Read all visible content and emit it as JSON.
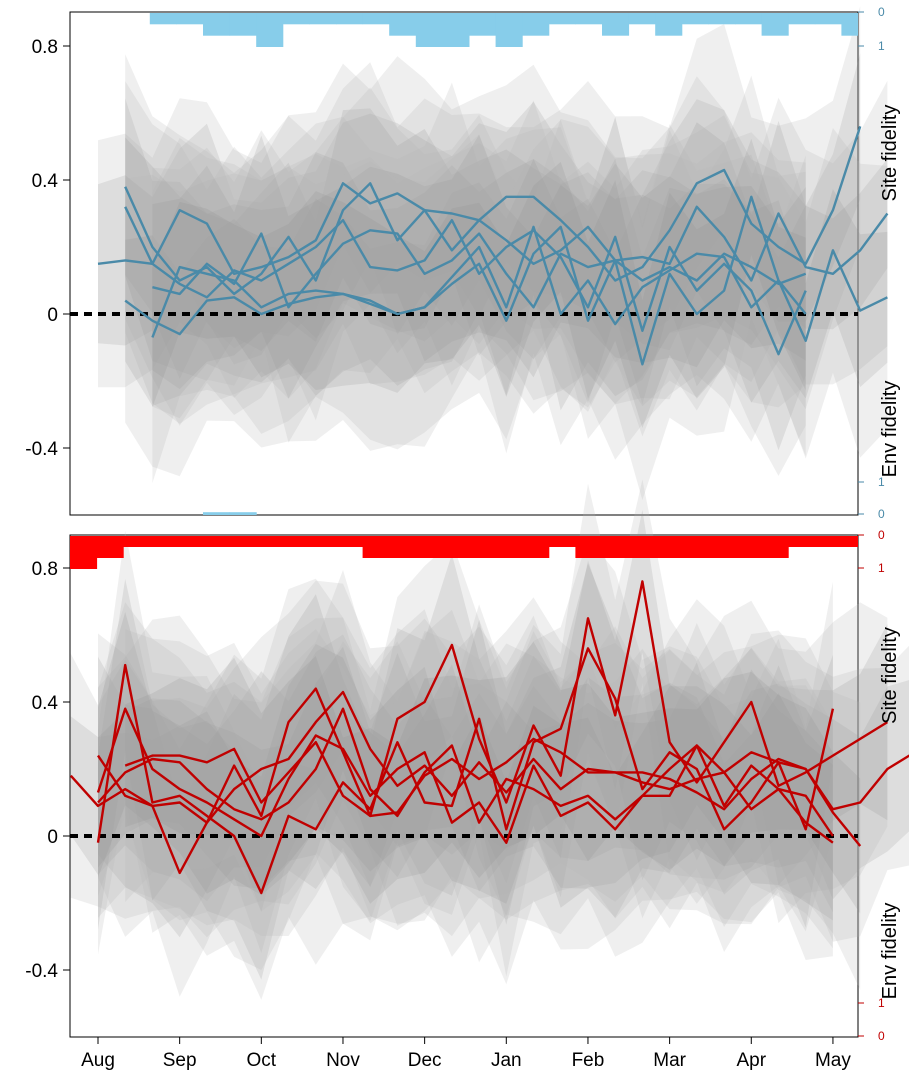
{
  "chart_data": [
    {
      "type": "line",
      "panel": "top",
      "line_color": "#4a8aa8",
      "bar_color": "#87cdea",
      "x_ticks": [
        "Aug",
        "Sep",
        "Oct",
        "Nov",
        "Dec",
        "Jan",
        "Feb",
        "Mar",
        "Apr",
        "May"
      ],
      "y_ticks": [
        "0.8",
        "0.4",
        "0",
        "-0.4"
      ],
      "y_tick_values": [
        0.8,
        0.4,
        0,
        -0.4
      ],
      "ylim": [
        -0.6,
        0.9
      ],
      "xlim": [
        0,
        31.5
      ],
      "right_axis_label_top": "Site fidelity",
      "right_axis_label_bottom": "Env fidelity",
      "right_ticks_top": [
        "0",
        "1"
      ],
      "right_ticks_bottom": [
        "1",
        "0"
      ],
      "site_fidelity_counts": [
        0,
        0,
        0,
        1,
        1,
        2,
        2,
        3,
        1,
        1,
        1,
        1,
        2,
        3,
        3,
        2,
        3,
        2,
        1,
        1,
        2,
        1,
        2,
        1,
        1,
        1,
        2,
        1,
        1,
        2,
        3,
        3,
        2
      ],
      "env_fidelity_counts": [
        0,
        0,
        0,
        0,
        0,
        1,
        1,
        0,
        0,
        0,
        0,
        0,
        0,
        0,
        0,
        0,
        0,
        0,
        0,
        0,
        0,
        0,
        0,
        0,
        0,
        0,
        0,
        0,
        0,
        0,
        0,
        0,
        0
      ],
      "series": [
        {
          "x": [
            1,
            2,
            3,
            4,
            5,
            6,
            7,
            8,
            9,
            10,
            11,
            12,
            13,
            14,
            15,
            16,
            17,
            18,
            19,
            20,
            21,
            22,
            23,
            24,
            25,
            26,
            27,
            28,
            29,
            30,
            31
          ],
          "values": [
            0.15,
            0.16,
            0.15,
            0.31,
            0.27,
            0.12,
            0.14,
            0.17,
            0.22,
            0.39,
            0.33,
            0.36,
            0.31,
            0.3,
            0.28,
            0.35,
            0.35,
            0.28,
            0.2,
            0.1,
            0.14,
            0.25,
            0.39,
            0.43,
            0.27,
            0.2,
            0.15,
            0.31,
            0.56,
            null,
            null
          ]
        },
        {
          "x": [
            2,
            3,
            4,
            5,
            6,
            7,
            8,
            9,
            10,
            11,
            12,
            13,
            14,
            15,
            16,
            17,
            18,
            19,
            20,
            21,
            22,
            23,
            24,
            25,
            26,
            27,
            28,
            29,
            30,
            31
          ],
          "values": [
            0.38,
            0.2,
            0.1,
            0.14,
            0.06,
            0.12,
            0.23,
            0.1,
            0.31,
            0.39,
            0.22,
            0.31,
            0.19,
            0.28,
            0.22,
            0.15,
            0.19,
            0.26,
            0.16,
            0.17,
            0.15,
            0.32,
            0.23,
            0.1,
            0.3,
            0.14,
            0.12,
            0.19,
            0.3,
            null
          ]
        },
        {
          "x": [
            2,
            3,
            4,
            5,
            6,
            7,
            8,
            9,
            10,
            11,
            12,
            13,
            14,
            15,
            16,
            17,
            18,
            19,
            20,
            21,
            22,
            23,
            24,
            25,
            26,
            27
          ],
          "values": [
            0.32,
            0.15,
            0.09,
            0.05,
            0.13,
            0.1,
            0.15,
            0.2,
            0.28,
            0.14,
            0.13,
            0.16,
            0.28,
            0.12,
            0.2,
            0.25,
            0.17,
            0.02,
            0.23,
            -0.05,
            0.2,
            0.07,
            0.15,
            0.07,
            -0.12,
            0.07
          ]
        },
        {
          "x": [
            2,
            3,
            4,
            5,
            6,
            7,
            8,
            9,
            10,
            11,
            12,
            13,
            14,
            15,
            16,
            17,
            18,
            19,
            20,
            21,
            22,
            23,
            24,
            25,
            26,
            27,
            28,
            29,
            30
          ],
          "values": [
            0.04,
            -0.02,
            -0.06,
            0.04,
            0.05,
            0.0,
            0.03,
            0.05,
            0.06,
            0.03,
            0.0,
            0.02,
            0.11,
            0.2,
            0.02,
            0.26,
            0.0,
            0.1,
            -0.03,
            0.08,
            0.13,
            0.18,
            0.17,
            0.02,
            0.1,
            -0.08,
            0.19,
            0.01,
            0.05
          ]
        },
        {
          "x": [
            3,
            4,
            5,
            6,
            7,
            8,
            9,
            10,
            11,
            12,
            13,
            14,
            15,
            16,
            17,
            18,
            19,
            20,
            21,
            22,
            23,
            24,
            25,
            26,
            27
          ],
          "values": [
            0.08,
            0.06,
            0.15,
            0.09,
            0.24,
            0.02,
            0.12,
            0.21,
            0.25,
            0.24,
            0.12,
            0.16,
            0.24,
            0.12,
            0.02,
            0.18,
            0.14,
            0.16,
            0.1,
            0.14,
            0.1,
            0.18,
            0.14,
            0.09,
            0.12
          ]
        },
        {
          "x": [
            3,
            4,
            5,
            6,
            7,
            8,
            9,
            10,
            11,
            12,
            13,
            14,
            15,
            16,
            17,
            18,
            19,
            20,
            21,
            22,
            23,
            24,
            25,
            26,
            27
          ],
          "values": [
            -0.07,
            0.14,
            0.12,
            0.1,
            0.02,
            0.06,
            0.07,
            0.06,
            0.04,
            0.0,
            0.02,
            0.09,
            0.15,
            -0.02,
            0.18,
            0.26,
            -0.02,
            0.16,
            -0.15,
            0.12,
            0.0,
            0.07,
            0.35,
            0.1,
            0.0
          ]
        }
      ]
    },
    {
      "type": "line",
      "panel": "bottom",
      "line_color": "#c00000",
      "bar_color": "#ff0000",
      "x_ticks": [
        "Aug",
        "Sep",
        "Oct",
        "Nov",
        "Dec",
        "Jan",
        "Feb",
        "Mar",
        "Apr",
        "May"
      ],
      "y_ticks": [
        "0.8",
        "0.4",
        "0",
        "-0.4"
      ],
      "y_tick_values": [
        0.8,
        0.4,
        0,
        -0.4
      ],
      "ylim": [
        -0.6,
        0.9
      ],
      "xlim": [
        0,
        31.5
      ],
      "right_axis_label_top": "Site fidelity",
      "right_axis_label_bottom": "Env fidelity",
      "right_ticks_top": [
        "0",
        "1"
      ],
      "right_ticks_bottom": [
        "1",
        "0"
      ],
      "site_fidelity_counts": [
        3,
        2,
        1,
        1,
        1,
        1,
        1,
        1,
        1,
        1,
        1,
        2,
        2,
        2,
        2,
        2,
        2,
        2,
        1,
        2,
        2,
        2,
        2,
        2,
        2,
        2,
        2,
        1,
        1,
        1,
        1,
        1,
        3
      ],
      "env_fidelity_counts": [
        0,
        0,
        0,
        0,
        0,
        0,
        0,
        0,
        0,
        0,
        0,
        0,
        0,
        0,
        0,
        0,
        0,
        0,
        0,
        0,
        0,
        0,
        0,
        0,
        0,
        0,
        0,
        0,
        0,
        0,
        0,
        0,
        0
      ],
      "series": [
        {
          "x": [
            0,
            1,
            2,
            3,
            4,
            5,
            6,
            7,
            8,
            9,
            10,
            11,
            12,
            13,
            14,
            15,
            16,
            17,
            18,
            19,
            20,
            21,
            22,
            23,
            24,
            25,
            26,
            27,
            28,
            29,
            30,
            31
          ],
          "values": [
            0.18,
            0.09,
            0.14,
            0.09,
            0.1,
            0.04,
            0.14,
            0.2,
            0.23,
            0.34,
            0.43,
            0.26,
            0.15,
            0.21,
            0.12,
            0.22,
            0.13,
            0.23,
            0.14,
            0.2,
            0.19,
            0.19,
            0.17,
            0.13,
            0.08,
            0.17,
            0.23,
            0.2,
            0.08,
            0.1,
            0.2,
            0.25
          ]
        },
        {
          "x": [
            1,
            2,
            3,
            4,
            5,
            6,
            7,
            8,
            9,
            10,
            11,
            12,
            13,
            14,
            15,
            16,
            17,
            18,
            19,
            20,
            21,
            22,
            23,
            24,
            25,
            26,
            27,
            28,
            29,
            30
          ],
          "values": [
            0.24,
            0.12,
            0.09,
            -0.11,
            0.04,
            0.21,
            0.06,
            0.34,
            0.44,
            0.25,
            0.06,
            0.35,
            0.4,
            0.57,
            0.29,
            0.1,
            0.33,
            0.18,
            0.65,
            0.36,
            0.76,
            0.28,
            0.16,
            0.28,
            0.4,
            0.15,
            0.19,
            0.24,
            0.29,
            0.34
          ]
        },
        {
          "x": [
            1,
            2,
            3,
            4,
            5,
            6,
            7,
            8,
            9,
            10,
            11,
            12,
            13,
            14,
            15,
            16,
            17,
            18,
            19,
            20,
            21,
            22,
            23,
            24,
            25,
            26,
            27,
            28
          ],
          "values": [
            -0.02,
            0.51,
            0.1,
            0.12,
            0.06,
            0.0,
            -0.17,
            0.06,
            0.02,
            0.16,
            0.08,
            0.28,
            0.1,
            0.09,
            0.35,
            0.02,
            0.28,
            0.32,
            0.56,
            0.41,
            0.14,
            0.25,
            0.2,
            0.02,
            0.1,
            0.22,
            0.02,
            0.38
          ]
        },
        {
          "x": [
            1,
            2,
            3,
            4,
            5,
            6,
            7,
            8,
            9,
            10,
            11,
            12,
            13,
            14,
            15,
            16,
            17,
            18,
            19,
            20,
            21,
            22,
            23,
            24,
            25,
            26,
            27,
            28
          ],
          "values": [
            0.1,
            0.19,
            0.23,
            0.22,
            0.14,
            0.08,
            0.05,
            0.1,
            0.2,
            0.38,
            0.14,
            0.06,
            0.19,
            0.27,
            0.04,
            0.17,
            0.14,
            0.09,
            0.12,
            0.05,
            0.12,
            0.12,
            0.27,
            0.09,
            0.21,
            0.14,
            0.12,
            0.0
          ]
        },
        {
          "x": [
            1,
            2,
            3,
            4,
            5,
            6,
            7,
            8,
            9,
            10,
            11,
            12,
            13,
            14,
            15,
            16,
            17,
            18,
            19,
            20,
            21,
            22,
            23,
            24,
            25,
            26,
            27,
            28
          ],
          "values": [
            0.13,
            0.38,
            0.2,
            0.14,
            0.1,
            0.05,
            0.0,
            0.17,
            0.3,
            0.26,
            0.12,
            0.2,
            0.25,
            0.04,
            0.1,
            -0.02,
            0.21,
            0.06,
            0.1,
            0.02,
            0.12,
            0.2,
            0.27,
            0.19,
            0.08,
            0.14,
            0.04,
            -0.02
          ]
        },
        {
          "x": [
            2,
            3,
            4,
            5,
            6,
            7,
            8,
            9,
            10,
            11,
            12,
            13,
            14,
            15,
            16,
            17,
            18,
            19,
            20,
            21,
            22,
            23,
            24,
            25,
            26,
            27,
            28,
            29
          ],
          "values": [
            0.21,
            0.24,
            0.24,
            0.22,
            0.26,
            0.1,
            0.19,
            0.28,
            0.12,
            0.06,
            0.07,
            0.18,
            0.23,
            0.17,
            0.22,
            0.29,
            0.25,
            0.19,
            0.19,
            0.16,
            0.14,
            0.17,
            0.19,
            0.25,
            0.22,
            0.2,
            0.07,
            -0.03
          ]
        }
      ]
    }
  ]
}
